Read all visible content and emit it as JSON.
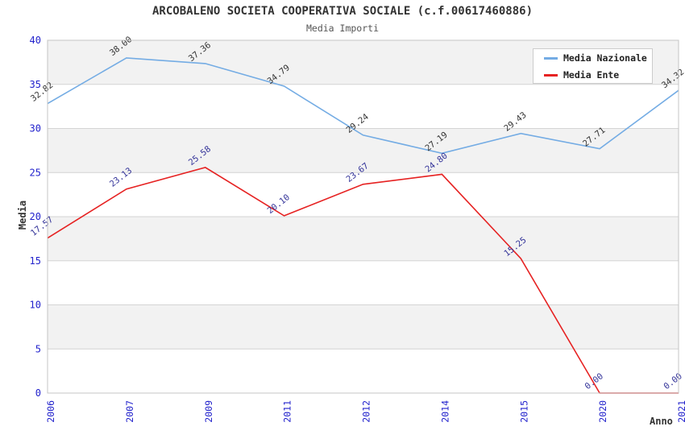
{
  "chart_data": {
    "type": "line",
    "title": "ARCOBALENO SOCIETA COOPERATIVA SOCIALE (c.f.00617460886)",
    "subtitle": "Media Importi",
    "xlabel": "Anno",
    "ylabel": "Media",
    "categories": [
      "2006",
      "2007",
      "2009",
      "2011",
      "2012",
      "2014",
      "2015",
      "2020",
      "2021"
    ],
    "series": [
      {
        "name": "Media Nazionale",
        "color": "#74ace4",
        "label_color": "#333333",
        "values": [
          32.82,
          38.0,
          37.36,
          34.79,
          29.24,
          27.19,
          29.43,
          27.71,
          34.32
        ]
      },
      {
        "name": "Media Ente",
        "color": "#e62222",
        "label_color": "#333399",
        "values": [
          17.57,
          23.13,
          25.58,
          20.1,
          23.67,
          24.8,
          15.25,
          0.0,
          0.0
        ]
      }
    ],
    "ylim": [
      0,
      40
    ],
    "yticks": [
      0,
      5,
      10,
      15,
      20,
      25,
      30,
      35,
      40
    ],
    "grid": "horizontal",
    "legend_position": "top-right",
    "value_label_decimals": 2,
    "colors": {
      "band": "#f2f2f2",
      "gridline": "#d4d4d4",
      "border": "#c4c4c4",
      "tick_label": "#2222cc",
      "axis_title": "#333333",
      "background": "#ffffff"
    }
  }
}
